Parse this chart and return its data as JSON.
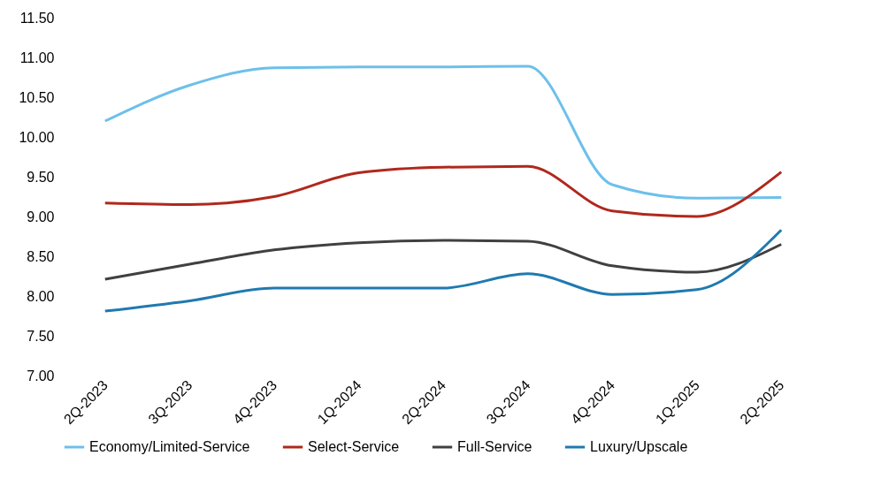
{
  "chart_data": {
    "type": "line",
    "categories": [
      "2Q-2023",
      "3Q-2023",
      "4Q-2023",
      "1Q-2024",
      "2Q-2024",
      "3Q-2024",
      "4Q-2024",
      "1Q-2025",
      "2Q-2025"
    ],
    "series": [
      {
        "name": "Economy/Limited-Service",
        "color": "#6cc0ea",
        "values": [
          10.2,
          10.65,
          10.87,
          10.88,
          10.88,
          10.89,
          9.4,
          9.23,
          9.24
        ]
      },
      {
        "name": "Select-Service",
        "color": "#b0281c",
        "values": [
          9.17,
          9.15,
          9.25,
          9.55,
          9.62,
          9.63,
          9.07,
          9.0,
          9.56
        ]
      },
      {
        "name": "Full-Service",
        "color": "#404040",
        "values": [
          8.21,
          8.4,
          8.58,
          8.67,
          8.7,
          8.69,
          8.38,
          8.3,
          8.65
        ]
      },
      {
        "name": "Luxury/Upscale",
        "color": "#1f7ab0",
        "values": [
          7.81,
          7.94,
          8.1,
          8.1,
          8.1,
          8.28,
          8.02,
          8.08,
          8.83
        ]
      }
    ],
    "ylim": [
      7,
      11.5
    ],
    "yticks": [
      {
        "value": 7,
        "label": "7.00"
      },
      {
        "value": 7.5,
        "label": "7.50"
      },
      {
        "value": 8,
        "label": "8.00"
      },
      {
        "value": 8.5,
        "label": "8.50"
      },
      {
        "value": 9,
        "label": "9.00"
      },
      {
        "value": 9.5,
        "label": "9.50"
      },
      {
        "value": 10,
        "label": "10.00"
      },
      {
        "value": 10.5,
        "label": "10.50"
      },
      {
        "value": 11,
        "label": "11.00"
      },
      {
        "value": 11.5,
        "label": "11.50"
      }
    ],
    "grid": false,
    "legend": "bottom",
    "marker": "none",
    "line_style": "solid"
  }
}
